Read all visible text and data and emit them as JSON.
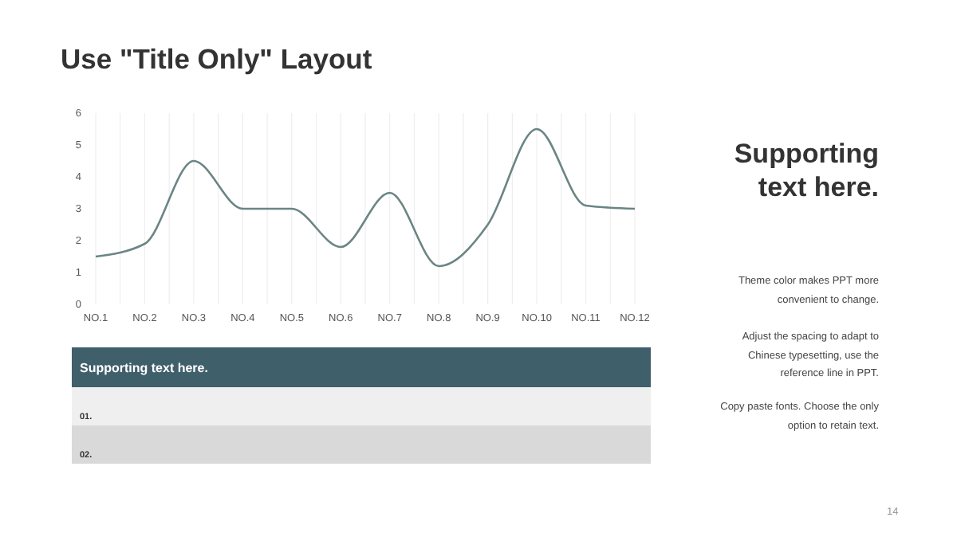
{
  "chart_data": {
    "type": "line",
    "title": "Use \"Title Only\" Layout",
    "categories": [
      "NO.1",
      "NO.2",
      "NO.3",
      "NO.4",
      "NO.5",
      "NO.6",
      "NO.7",
      "NO.8",
      "NO.9",
      "NO.10",
      "NO.11",
      "NO.12"
    ],
    "series": [
      {
        "color": "#6b8584",
        "values": [
          1.5,
          1.9,
          4.5,
          3.0,
          3.0,
          1.8,
          3.5,
          1.2,
          2.5,
          5.5,
          3.1,
          3.0
        ]
      }
    ],
    "ylim": [
      0,
      6
    ],
    "yticks": [
      0,
      1,
      2,
      3,
      4,
      5,
      6
    ],
    "grid": "x",
    "marker": "none",
    "line_style": "solid",
    "annotations": [
      "Supporting text here.",
      "01.",
      "02.",
      "Supporting text here.",
      "Theme color makes PPT more convenient to change.",
      "Adjust the spacing to adapt to Chinese typesetting, use the reference line in PPT.",
      "Copy paste  fonts. Choose the only option to retain text.",
      "14"
    ]
  }
}
